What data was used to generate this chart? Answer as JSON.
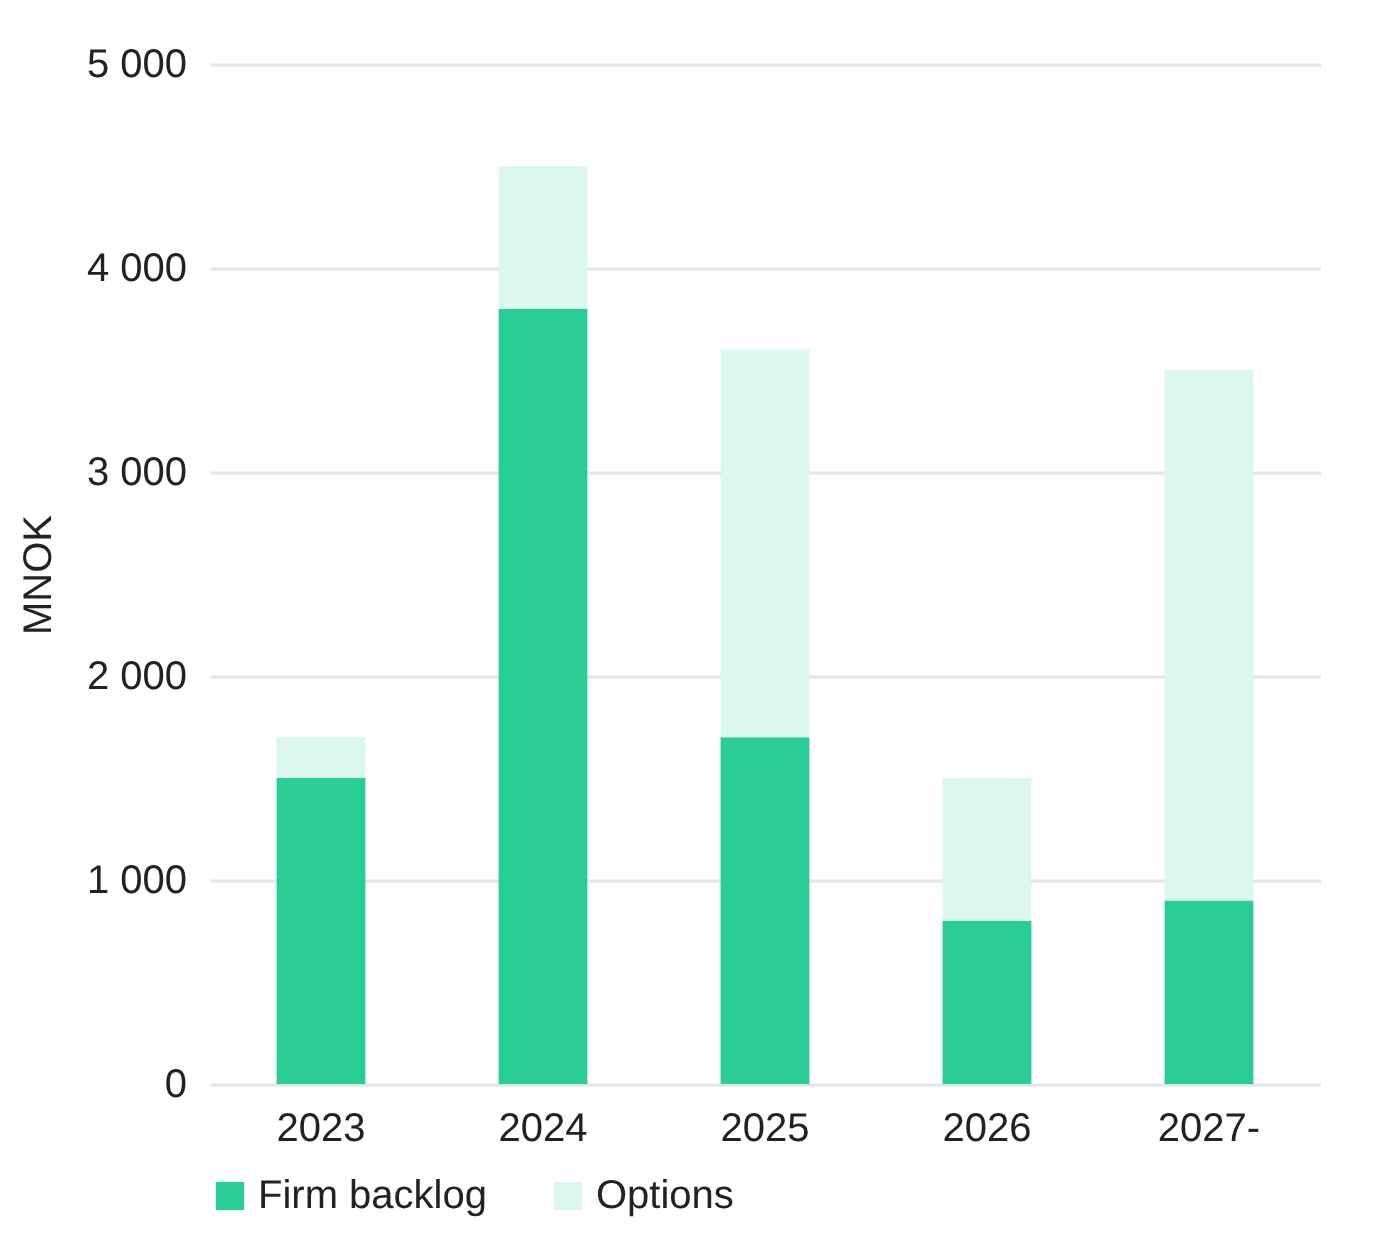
{
  "chart_data": {
    "type": "bar",
    "ylabel": "MNOK",
    "categories": [
      "2023",
      "2024",
      "2025",
      "2026",
      "2027-"
    ],
    "series": [
      {
        "name": "Firm backlog",
        "color": "#2bcd96",
        "values": [
          1500,
          3800,
          1700,
          800,
          900
        ]
      },
      {
        "name": "Options",
        "color": "#dbf7ee",
        "values": [
          200,
          700,
          1900,
          700,
          2600
        ]
      }
    ],
    "stacked": true,
    "ylim": [
      0,
      5000
    ],
    "yticks": [
      {
        "value": 0,
        "label": "0"
      },
      {
        "value": 1000,
        "label": "1 000"
      },
      {
        "value": 2000,
        "label": "2 000"
      },
      {
        "value": 3000,
        "label": "3 000"
      },
      {
        "value": 4000,
        "label": "4 000"
      },
      {
        "value": 5000,
        "label": "5 000"
      }
    ],
    "grid": "y",
    "legend": "bottom"
  }
}
